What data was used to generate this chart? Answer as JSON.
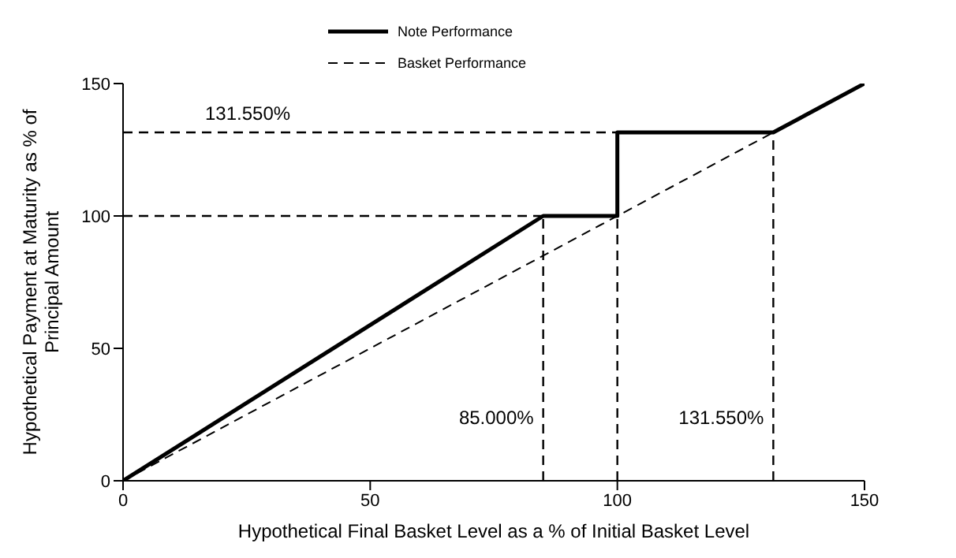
{
  "chart_data": {
    "type": "line",
    "xlabel": "Hypothetical Final Basket Level as a % of Initial Basket Level",
    "ylabel": "Hypothetical Payment at Maturity as % of Principal Amount",
    "series": [
      {
        "name": "Note Performance",
        "color": "#000000",
        "line_style": "solid",
        "x": [
          0,
          85,
          100,
          100,
          131.55,
          150
        ],
        "values": [
          0,
          100,
          100,
          131.55,
          131.55,
          150
        ]
      },
      {
        "name": "Basket Performance",
        "color": "#000000",
        "line_style": "dashed",
        "x": [
          0,
          150
        ],
        "values": [
          0,
          150
        ]
      }
    ],
    "xlim": [
      0,
      150
    ],
    "xticks": [
      0,
      50,
      100,
      150
    ],
    "ylim": [
      0,
      150
    ],
    "yticks": [
      0,
      50,
      100,
      150
    ],
    "ref_lines": [
      {
        "axis": "y",
        "value": 100,
        "color": "#000000",
        "line_style": "dashed"
      },
      {
        "axis": "y",
        "value": 131.55,
        "label": "131.550%",
        "color": "#000000",
        "line_style": "dashed"
      },
      {
        "axis": "x",
        "value": 85,
        "label": "85.000%",
        "color": "#000000",
        "line_style": "dashed"
      },
      {
        "axis": "x",
        "value": 100,
        "color": "#000000",
        "line_style": "dashed"
      },
      {
        "axis": "x",
        "value": 131.55,
        "label": "131.550%",
        "color": "#000000",
        "line_style": "dashed"
      }
    ],
    "grid": false,
    "legend": "top",
    "marker": "none"
  }
}
